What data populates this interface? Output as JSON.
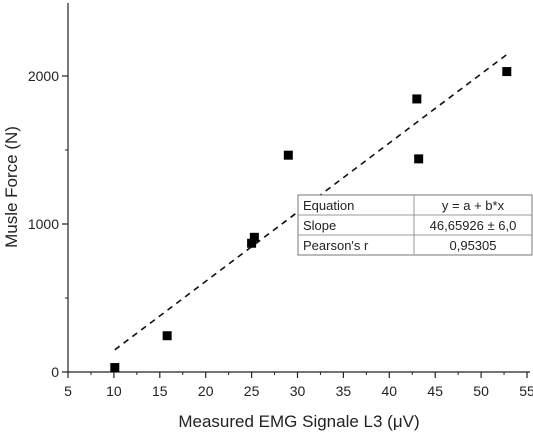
{
  "chart_data": {
    "type": "scatter",
    "xlabel": "Measured EMG Signale L3 (μV)",
    "ylabel": "Musle Force (N)",
    "xlim": [
      5,
      55
    ],
    "ylim": [
      0,
      2500
    ],
    "x_ticks": [
      "5",
      "10",
      "15",
      "20",
      "25",
      "30",
      "35",
      "40",
      "45",
      "50",
      "55"
    ],
    "y_ticks": [
      "0",
      "1000",
      "2000"
    ],
    "grid": false,
    "points": [
      {
        "x": 10.1,
        "y": 30
      },
      {
        "x": 15.8,
        "y": 245
      },
      {
        "x": 25.0,
        "y": 870
      },
      {
        "x": 25.3,
        "y": 910
      },
      {
        "x": 29.0,
        "y": 1465
      },
      {
        "x": 43.0,
        "y": 1845
      },
      {
        "x": 43.2,
        "y": 1440
      },
      {
        "x": 52.8,
        "y": 2030
      }
    ],
    "fit_line": {
      "style": "dashed",
      "x": [
        10.1,
        52.8
      ],
      "y": [
        150,
        2145
      ]
    },
    "stats_table": [
      [
        "Equation",
        "y = a + b*x"
      ],
      [
        "Slope",
        "46,65926 ± 6,0"
      ],
      [
        "Pearson's r",
        "0,95305"
      ]
    ]
  }
}
